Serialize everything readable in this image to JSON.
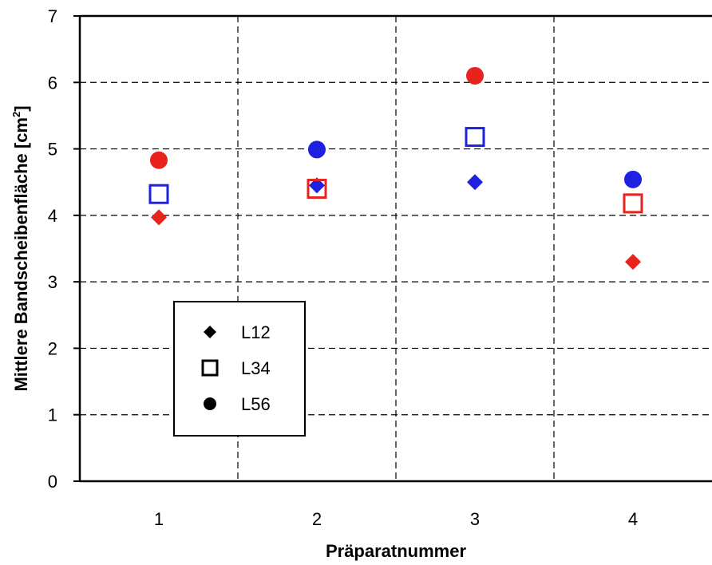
{
  "chart_data": {
    "type": "scatter",
    "title": "",
    "xlabel": "Präparatnummer",
    "ylabel": "Mittlere Bandscheibenfläche [cm",
    "ylabel_superscript": "2",
    "ylabel_suffix": "]",
    "xlim": [
      0.5,
      4.5
    ],
    "ylim": [
      0,
      7
    ],
    "x_ticks": [
      1,
      2,
      3,
      4
    ],
    "x_tick_labels": [
      "1",
      "2",
      "3",
      "4"
    ],
    "y_ticks": [
      0,
      1,
      2,
      3,
      4,
      5,
      6,
      7
    ],
    "y_tick_labels": [
      "0",
      "1",
      "2",
      "3",
      "4",
      "5",
      "6",
      "7"
    ],
    "grid": true,
    "legend_position": "bottom-left",
    "series": [
      {
        "name": "L12",
        "marker": "diamond",
        "points": [
          {
            "x": 1,
            "y": 3.97,
            "color": "#e8221c"
          },
          {
            "x": 2,
            "y": 4.45,
            "color": "#1e22e0"
          },
          {
            "x": 3,
            "y": 4.5,
            "color": "#1e22e0"
          },
          {
            "x": 4,
            "y": 3.3,
            "color": "#e8221c"
          }
        ]
      },
      {
        "name": "L34",
        "marker": "square-open",
        "points": [
          {
            "x": 1,
            "y": 4.32,
            "color": "#1e22e0"
          },
          {
            "x": 2,
            "y": 4.4,
            "color": "#e8221c"
          },
          {
            "x": 3,
            "y": 5.18,
            "color": "#1e22e0"
          },
          {
            "x": 4,
            "y": 4.18,
            "color": "#e8221c"
          }
        ]
      },
      {
        "name": "L56",
        "marker": "circle",
        "points": [
          {
            "x": 1,
            "y": 4.83,
            "color": "#e8221c"
          },
          {
            "x": 2,
            "y": 4.99,
            "color": "#1e22e0"
          },
          {
            "x": 3,
            "y": 6.1,
            "color": "#e8221c"
          },
          {
            "x": 4,
            "y": 4.54,
            "color": "#1e22e0"
          }
        ]
      }
    ]
  }
}
